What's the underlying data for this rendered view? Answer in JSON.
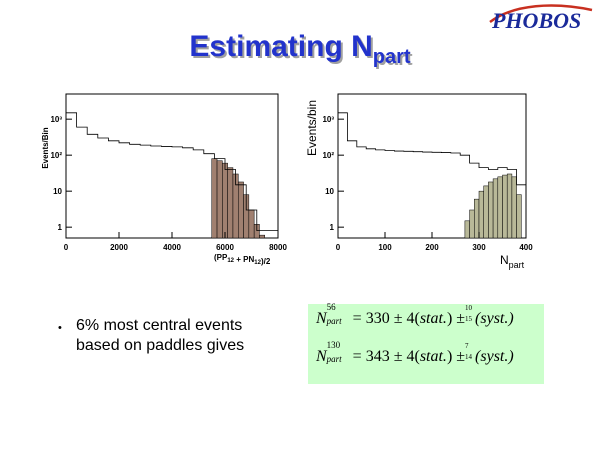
{
  "logo": {
    "text": "PHOBOS"
  },
  "title": {
    "main": "Estimating N",
    "subscript": "part"
  },
  "chart_data": [
    {
      "type": "bar",
      "title": "",
      "xlabel_main": "(PP",
      "xlabel_sub1": "12",
      "xlabel_mid": " + PN",
      "xlabel_sub2": "12",
      "xlabel_end": ")/2",
      "ylabel": "Events/Bin",
      "xlim": [
        0,
        8000
      ],
      "ylim_log": [
        0.5,
        5000
      ],
      "y_log": true,
      "xticks": [
        "0",
        "2000",
        "4000",
        "6000",
        "8000"
      ],
      "yticks": [
        {
          "value": 1,
          "label": "1"
        },
        {
          "value": 10,
          "label": "10"
        },
        {
          "value": 100,
          "label": "10²"
        },
        {
          "value": 1000,
          "label": "10³"
        }
      ],
      "series": [
        {
          "role": "all",
          "x": [
            0,
            400,
            800,
            1200,
            1600,
            2000,
            2400,
            2800,
            3200,
            3600,
            4000,
            4400,
            4800,
            5200,
            5600,
            6000,
            6400,
            6800,
            7200,
            7600
          ],
          "y": [
            1500,
            600,
            380,
            300,
            250,
            220,
            200,
            190,
            180,
            175,
            170,
            160,
            140,
            110,
            80,
            40,
            15,
            3,
            0.8,
            0.8
          ]
        },
        {
          "role": "selected",
          "x": [
            5500,
            5700,
            5900,
            6100,
            6300,
            6500,
            6700,
            6900,
            7100,
            7300
          ],
          "y": [
            80,
            70,
            60,
            45,
            30,
            18,
            8,
            3,
            1.2,
            0.6
          ]
        }
      ]
    },
    {
      "type": "bar",
      "title": "",
      "xlabel_main": "N",
      "xlabel_sub": "part",
      "ylabel": "Events/bin",
      "xlim": [
        0,
        400
      ],
      "ylim_log": [
        0.5,
        5000
      ],
      "y_log": true,
      "xticks": [
        "0",
        "100",
        "200",
        "300",
        "400"
      ],
      "yticks": [
        {
          "value": 1,
          "label": "1"
        },
        {
          "value": 10,
          "label": "10"
        },
        {
          "value": 100,
          "label": "10²"
        },
        {
          "value": 1000,
          "label": "10³"
        }
      ],
      "series": [
        {
          "role": "all",
          "x": [
            0,
            20,
            40,
            60,
            80,
            100,
            120,
            140,
            160,
            180,
            200,
            220,
            240,
            260,
            280,
            300,
            320,
            340,
            360,
            380
          ],
          "y": [
            1500,
            250,
            170,
            150,
            140,
            135,
            130,
            128,
            125,
            122,
            120,
            118,
            115,
            100,
            60,
            45,
            40,
            45,
            40,
            15
          ]
        },
        {
          "role": "selected",
          "x": [
            270,
            280,
            290,
            300,
            310,
            320,
            330,
            340,
            350,
            360,
            370,
            380
          ],
          "y": [
            1.5,
            3,
            6,
            10,
            14,
            18,
            22,
            25,
            28,
            30,
            25,
            8
          ]
        }
      ]
    }
  ],
  "bullet": {
    "dot": "•",
    "line1": "6% most central events",
    "line2": "based on paddles gives"
  },
  "formulas": [
    {
      "N": "N",
      "sup": "56",
      "sub": "part",
      "eq": " = 330 ± 4(",
      "stat": "stat.",
      "close1": ")",
      "pm": "±",
      "errUp": "10",
      "errDn": "15",
      "syst": "(syst.)"
    },
    {
      "N": "N",
      "sup": "130",
      "sub": "part",
      "eq": " = 343 ± 4(",
      "stat": "stat.",
      "close1": ")",
      "pm": "±",
      "errUp": "7",
      "errDn": "14",
      "syst": "(syst.)"
    }
  ],
  "colors": {
    "title": "#2233cc",
    "left_fill": "#a08070",
    "right_fill": "#b8b898",
    "formula_bg": "#ccffcc"
  }
}
